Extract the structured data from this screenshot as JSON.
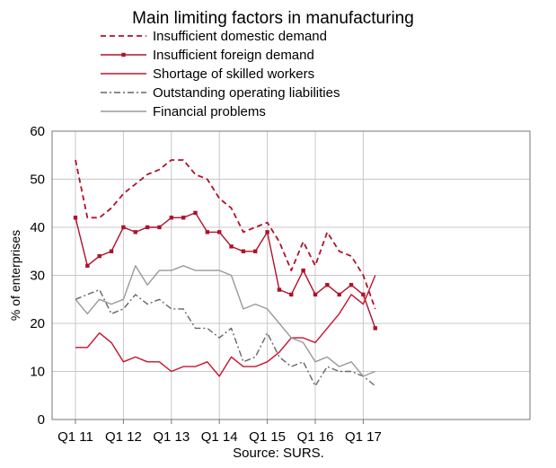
{
  "chart_data": {
    "type": "line",
    "title": "Main limiting factors in manufacturing",
    "ylabel": "% of enterprises",
    "source": "Source: SURS.",
    "ylim": [
      0,
      60
    ],
    "y_ticks": [
      "0",
      "10",
      "20",
      "30",
      "40",
      "50",
      "60"
    ],
    "x_tick_labels": [
      "Q1 11",
      "Q1 12",
      "Q1 13",
      "Q1 14",
      "Q1 15",
      "Q1 16",
      "Q1 17"
    ],
    "x": [
      "Q1 11",
      "Q2 11",
      "Q3 11",
      "Q4 11",
      "Q1 12",
      "Q2 12",
      "Q3 12",
      "Q4 12",
      "Q1 13",
      "Q2 13",
      "Q3 13",
      "Q4 13",
      "Q1 14",
      "Q2 14",
      "Q3 14",
      "Q4 14",
      "Q1 15",
      "Q2 15",
      "Q3 15",
      "Q4 15",
      "Q1 16",
      "Q2 16",
      "Q3 16",
      "Q4 16",
      "Q1 17",
      "Q2 17"
    ],
    "grid": true,
    "legend_position": "top",
    "series": [
      {
        "name": "Insufficient domestic demand",
        "color": "#b0112a",
        "style": "dashed",
        "values": [
          54,
          42,
          42,
          44,
          47,
          49,
          51,
          52,
          54,
          54,
          51,
          50,
          46,
          44,
          39,
          40,
          41,
          37,
          31,
          37,
          32,
          39,
          35,
          34,
          30,
          23
        ]
      },
      {
        "name": "Insufficient foreign demand",
        "color": "#b0112a",
        "style": "solid-markers",
        "values": [
          42,
          32,
          34,
          35,
          40,
          39,
          40,
          40,
          42,
          42,
          43,
          39,
          39,
          36,
          35,
          35,
          39,
          27,
          26,
          31,
          26,
          28,
          26,
          28,
          26,
          19
        ]
      },
      {
        "name": "Shortage of skilled workers",
        "color": "#c8102e",
        "style": "solid",
        "values": [
          15,
          15,
          18,
          16,
          12,
          13,
          12,
          12,
          10,
          11,
          11,
          12,
          9,
          13,
          11,
          11,
          12,
          14,
          17,
          17,
          16,
          19,
          22,
          26,
          24,
          30
        ]
      },
      {
        "name": "Outstanding operating liabilities",
        "color": "#666666",
        "style": "dashdot",
        "values": [
          25,
          26,
          27,
          22,
          23,
          26,
          24,
          25,
          23,
          23,
          19,
          19,
          17,
          19,
          12,
          13,
          18,
          13,
          11,
          12,
          7,
          11,
          10,
          10,
          9,
          7
        ]
      },
      {
        "name": "Financial problems",
        "color": "#999999",
        "style": "solid",
        "values": [
          25,
          22,
          25,
          24,
          25,
          32,
          28,
          31,
          31,
          32,
          31,
          31,
          31,
          30,
          23,
          24,
          23,
          20,
          17,
          16,
          12,
          13,
          11,
          12,
          9,
          10
        ]
      }
    ]
  }
}
